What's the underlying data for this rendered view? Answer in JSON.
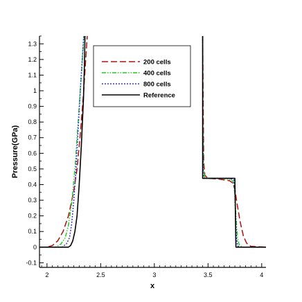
{
  "chart_data": {
    "type": "line",
    "title": "",
    "xlabel": "x",
    "ylabel": "Pressure(GPa)",
    "xlim": [
      1.93,
      4.04
    ],
    "ylim": [
      -0.125,
      1.35
    ],
    "xticks": [
      2,
      2.5,
      3,
      3.5,
      4
    ],
    "xtick_labels": [
      "2",
      "2.5",
      "3",
      "3.5",
      "4"
    ],
    "yticks": [
      -0.1,
      0,
      0.1,
      0.2,
      0.3,
      0.4,
      0.5,
      0.6,
      0.7,
      0.8,
      0.9,
      1,
      1.1,
      1.2,
      1.3
    ],
    "ytick_labels": [
      "-0.1",
      "0",
      "0.1",
      "0.2",
      "0.3",
      "0.4",
      "0.5",
      "0.6",
      "0.7",
      "0.8",
      "0.9",
      "1",
      "1.1",
      "1.2",
      "1.3"
    ],
    "grid": false,
    "legend_position": "top-center",
    "series": [
      {
        "name": "200 cells",
        "color": "#b01010",
        "dash": "dashed",
        "x": [
          1.93,
          2.0,
          2.05,
          2.1,
          2.15,
          2.2,
          2.25,
          2.28,
          2.31,
          2.34,
          2.37,
          2.38,
          null,
          3.45,
          3.455,
          3.46,
          3.47,
          3.5,
          3.6,
          3.7,
          3.73,
          3.75,
          3.77,
          3.8,
          3.83,
          3.86,
          3.9,
          4.04
        ],
        "y": [
          0.0,
          0.0,
          0.01,
          0.04,
          0.1,
          0.2,
          0.36,
          0.5,
          0.72,
          0.98,
          1.3,
          1.4,
          null,
          1.4,
          0.9,
          0.55,
          0.46,
          0.44,
          0.435,
          0.425,
          0.41,
          0.37,
          0.28,
          0.16,
          0.07,
          0.025,
          0.005,
          0.0
        ]
      },
      {
        "name": "400 cells",
        "color": "#22cc22",
        "dash": "dash-dot-dot",
        "x": [
          1.93,
          2.08,
          2.13,
          2.17,
          2.2,
          2.23,
          2.26,
          2.29,
          2.32,
          2.34,
          2.355,
          2.36,
          null,
          3.45,
          3.452,
          3.458,
          3.47,
          3.5,
          3.6,
          3.7,
          3.735,
          3.75,
          3.76,
          3.775,
          3.79,
          3.82,
          4.04
        ],
        "y": [
          0.0,
          0.0,
          0.02,
          0.06,
          0.14,
          0.28,
          0.5,
          0.8,
          1.1,
          1.3,
          1.4,
          1.4,
          null,
          1.4,
          0.8,
          0.5,
          0.445,
          0.44,
          0.44,
          0.435,
          0.42,
          0.34,
          0.2,
          0.06,
          0.015,
          0.0,
          0.0
        ]
      },
      {
        "name": "800 cells",
        "color": "#3333dd",
        "dash": "dotted",
        "x": [
          1.93,
          2.14,
          2.18,
          2.21,
          2.23,
          2.25,
          2.27,
          2.29,
          2.31,
          2.33,
          2.345,
          2.355,
          null,
          3.45,
          3.452,
          3.456,
          3.46,
          3.5,
          3.6,
          3.7,
          3.74,
          3.75,
          3.755,
          3.765,
          3.775,
          3.79,
          4.04
        ],
        "y": [
          0.0,
          0.0,
          0.02,
          0.06,
          0.15,
          0.3,
          0.5,
          0.75,
          1.0,
          1.22,
          1.38,
          1.4,
          null,
          1.4,
          0.7,
          0.47,
          0.44,
          0.44,
          0.44,
          0.44,
          0.43,
          0.36,
          0.22,
          0.06,
          0.01,
          0.0,
          0.0
        ]
      },
      {
        "name": "Reference",
        "color": "#000000",
        "dash": "solid",
        "x": [
          1.93,
          2.2,
          2.22,
          2.24,
          2.26,
          2.28,
          2.3,
          2.32,
          2.34,
          2.35,
          2.355,
          null,
          3.45,
          3.45,
          3.75,
          3.76,
          3.77,
          4.04
        ],
        "y": [
          0.0,
          0.0,
          0.01,
          0.04,
          0.1,
          0.2,
          0.4,
          0.65,
          0.95,
          1.2,
          1.4,
          null,
          1.4,
          0.44,
          0.44,
          0.0,
          0.0,
          0.0
        ]
      }
    ]
  }
}
